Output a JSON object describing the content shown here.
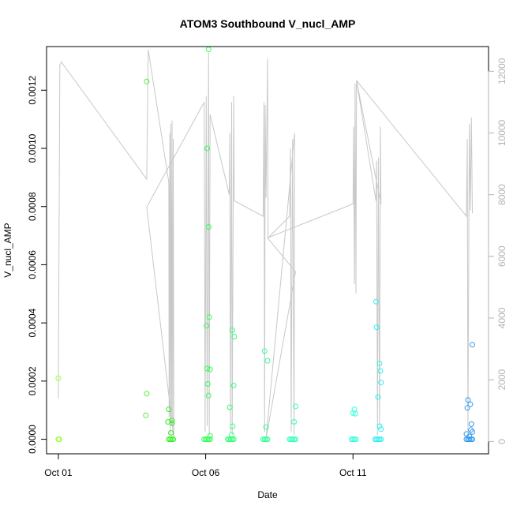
{
  "chart_data": {
    "type": "scatter",
    "title": "ATOM3 Southbound V_nucl_AMP",
    "xlabel": "Date",
    "ylabel": "V_nucl_AMP",
    "x_axis": {
      "ticks": [
        {
          "value": 0,
          "label": "Oct 01"
        },
        {
          "value": 5,
          "label": "Oct 06"
        },
        {
          "value": 10,
          "label": "Oct 11"
        }
      ],
      "xlim": [
        -0.4,
        14.6
      ]
    },
    "y_axis_left": {
      "ylim": [
        -5e-05,
        0.00135
      ],
      "ticks": [
        {
          "value": 0.0,
          "label": "0.0000"
        },
        {
          "value": 0.0002,
          "label": "0.0002"
        },
        {
          "value": 0.0004,
          "label": "0.0004"
        },
        {
          "value": 0.0006,
          "label": "0.0006"
        },
        {
          "value": 0.0008,
          "label": "0.0008"
        },
        {
          "value": 0.001,
          "label": "0.0010"
        },
        {
          "value": 0.0012,
          "label": "0.0012"
        }
      ]
    },
    "y_axis_right": {
      "color": "#b3b3b3",
      "ylim": [
        -400,
        12800
      ],
      "ticks": [
        {
          "value": 0,
          "label": "0"
        },
        {
          "value": 2000,
          "label": "2000"
        },
        {
          "value": 4000,
          "label": "4000"
        },
        {
          "value": 6000,
          "label": "6000"
        },
        {
          "value": 8000,
          "label": "8000"
        },
        {
          "value": 10000,
          "label": "10000"
        },
        {
          "value": 12000,
          "label": "12000"
        }
      ]
    },
    "grid": false,
    "points": [
      {
        "x": 0.0,
        "y": 0.00021,
        "color": "#99ff33"
      },
      {
        "x": 0.0,
        "y": 0.0,
        "color": "#99ff33"
      },
      {
        "x": 0.03,
        "y": 0.0,
        "color": "#99ff33"
      },
      {
        "x": 3.0,
        "y": 0.00123,
        "color": "#55ee33"
      },
      {
        "x": 3.0,
        "y": 0.000157,
        "color": "#55ee33"
      },
      {
        "x": 2.97,
        "y": 8.2e-05,
        "color": "#55ee33"
      },
      {
        "x": 3.75,
        "y": 0.000103,
        "color": "#33ee22"
      },
      {
        "x": 3.72,
        "y": 6e-05,
        "color": "#33ee22"
      },
      {
        "x": 3.85,
        "y": 6.5e-05,
        "color": "#33ee22"
      },
      {
        "x": 3.86,
        "y": 5.5e-05,
        "color": "#33ee22"
      },
      {
        "x": 3.82,
        "y": 2.2e-05,
        "color": "#33ee22"
      },
      {
        "x": 3.75,
        "y": 0.0,
        "color": "#33ee22"
      },
      {
        "x": 3.8,
        "y": 0.0,
        "color": "#33ee22"
      },
      {
        "x": 3.85,
        "y": 0.0,
        "color": "#33ee22"
      },
      {
        "x": 3.9,
        "y": 0.0,
        "color": "#33ee22"
      },
      {
        "x": 5.1,
        "y": 0.00134,
        "color": "#33ff55"
      },
      {
        "x": 5.05,
        "y": 0.001,
        "color": "#33ff55"
      },
      {
        "x": 5.1,
        "y": 0.00073,
        "color": "#33ff55"
      },
      {
        "x": 5.12,
        "y": 0.00042,
        "color": "#33ff55"
      },
      {
        "x": 5.03,
        "y": 0.00039,
        "color": "#33ff55"
      },
      {
        "x": 5.05,
        "y": 0.000243,
        "color": "#33ff55"
      },
      {
        "x": 5.15,
        "y": 0.00024,
        "color": "#33ff55"
      },
      {
        "x": 5.07,
        "y": 0.00019,
        "color": "#33ff55"
      },
      {
        "x": 5.1,
        "y": 0.00015,
        "color": "#33ff55"
      },
      {
        "x": 5.15,
        "y": 1.2e-05,
        "color": "#33ff55"
      },
      {
        "x": 4.95,
        "y": 0.0,
        "color": "#33ff55"
      },
      {
        "x": 5.0,
        "y": 0.0,
        "color": "#33ff55"
      },
      {
        "x": 5.05,
        "y": 0.0,
        "color": "#33ff55"
      },
      {
        "x": 5.1,
        "y": 0.0,
        "color": "#33ff55"
      },
      {
        "x": 5.15,
        "y": 0.0,
        "color": "#33ff55"
      },
      {
        "x": 5.9,
        "y": 0.000375,
        "color": "#33ff77"
      },
      {
        "x": 5.97,
        "y": 0.000353,
        "color": "#33ff77"
      },
      {
        "x": 5.95,
        "y": 0.000185,
        "color": "#33ff77"
      },
      {
        "x": 5.82,
        "y": 0.00011,
        "color": "#33ff77"
      },
      {
        "x": 5.92,
        "y": 4.5e-05,
        "color": "#33ff77"
      },
      {
        "x": 5.88,
        "y": 1.5e-05,
        "color": "#33ff77"
      },
      {
        "x": 5.75,
        "y": 0.0,
        "color": "#33ff77"
      },
      {
        "x": 5.8,
        "y": 0.0,
        "color": "#33ff77"
      },
      {
        "x": 5.85,
        "y": 0.0,
        "color": "#33ff77"
      },
      {
        "x": 5.9,
        "y": 0.0,
        "color": "#33ff77"
      },
      {
        "x": 5.95,
        "y": 0.0,
        "color": "#33ff77"
      },
      {
        "x": 7.0,
        "y": 0.000303,
        "color": "#33ff99"
      },
      {
        "x": 7.1,
        "y": 0.00027,
        "color": "#33ff99"
      },
      {
        "x": 7.05,
        "y": 4.2e-05,
        "color": "#33ff99"
      },
      {
        "x": 6.95,
        "y": 0.0,
        "color": "#33ff99"
      },
      {
        "x": 7.0,
        "y": 0.0,
        "color": "#33ff99"
      },
      {
        "x": 7.05,
        "y": 0.0,
        "color": "#33ff99"
      },
      {
        "x": 7.1,
        "y": 0.0,
        "color": "#33ff99"
      },
      {
        "x": 8.05,
        "y": 0.000113,
        "color": "#33ffbb"
      },
      {
        "x": 8.0,
        "y": 6e-05,
        "color": "#33ffbb"
      },
      {
        "x": 7.85,
        "y": 0.0,
        "color": "#33ffbb"
      },
      {
        "x": 7.9,
        "y": 0.0,
        "color": "#33ffbb"
      },
      {
        "x": 7.95,
        "y": 0.0,
        "color": "#33ffbb"
      },
      {
        "x": 8.0,
        "y": 0.0,
        "color": "#33ffbb"
      },
      {
        "x": 8.05,
        "y": 0.0,
        "color": "#33ffbb"
      },
      {
        "x": 10.05,
        "y": 0.000103,
        "color": "#33ffdd"
      },
      {
        "x": 10.0,
        "y": 9e-05,
        "color": "#33ffdd"
      },
      {
        "x": 10.08,
        "y": 8.8e-05,
        "color": "#33ffdd"
      },
      {
        "x": 9.95,
        "y": 0.0,
        "color": "#33ffdd"
      },
      {
        "x": 10.0,
        "y": 0.0,
        "color": "#33ffdd"
      },
      {
        "x": 10.05,
        "y": 0.0,
        "color": "#33ffdd"
      },
      {
        "x": 10.1,
        "y": 0.0,
        "color": "#33ffdd"
      },
      {
        "x": 10.78,
        "y": 0.000473,
        "color": "#33eeee"
      },
      {
        "x": 10.8,
        "y": 0.000385,
        "color": "#33eeee"
      },
      {
        "x": 10.9,
        "y": 0.00026,
        "color": "#33eeee"
      },
      {
        "x": 10.93,
        "y": 0.000235,
        "color": "#33eeee"
      },
      {
        "x": 10.95,
        "y": 0.000195,
        "color": "#33eeee"
      },
      {
        "x": 10.85,
        "y": 0.000145,
        "color": "#33eeee"
      },
      {
        "x": 10.9,
        "y": 4.5e-05,
        "color": "#33eeee"
      },
      {
        "x": 10.95,
        "y": 3.5e-05,
        "color": "#33eeee"
      },
      {
        "x": 10.75,
        "y": 0.0,
        "color": "#33eeee"
      },
      {
        "x": 10.8,
        "y": 0.0,
        "color": "#33eeee"
      },
      {
        "x": 10.85,
        "y": 0.0,
        "color": "#33eeee"
      },
      {
        "x": 10.9,
        "y": 0.0,
        "color": "#33eeee"
      },
      {
        "x": 10.95,
        "y": 0.0,
        "color": "#33eeee"
      },
      {
        "x": 14.05,
        "y": 0.000325,
        "color": "#3399ee"
      },
      {
        "x": 13.9,
        "y": 0.000135,
        "color": "#3399ee"
      },
      {
        "x": 13.98,
        "y": 0.00012,
        "color": "#3399ee"
      },
      {
        "x": 13.88,
        "y": 0.000108,
        "color": "#3399ee"
      },
      {
        "x": 14.02,
        "y": 5.2e-05,
        "color": "#3399ee"
      },
      {
        "x": 14.0,
        "y": 3.2e-05,
        "color": "#3399ee"
      },
      {
        "x": 14.05,
        "y": 2.5e-05,
        "color": "#3399ee"
      },
      {
        "x": 13.85,
        "y": 1.8e-05,
        "color": "#3399ee"
      },
      {
        "x": 13.95,
        "y": 1e-05,
        "color": "#3399ee"
      },
      {
        "x": 13.85,
        "y": 0.0,
        "color": "#3399ee"
      },
      {
        "x": 13.9,
        "y": 0.0,
        "color": "#3399ee"
      },
      {
        "x": 13.95,
        "y": 0.0,
        "color": "#3399ee"
      },
      {
        "x": 14.0,
        "y": 0.0,
        "color": "#3399ee"
      },
      {
        "x": 14.05,
        "y": 0.0,
        "color": "#3399ee"
      }
    ],
    "secondary_line": {
      "color": "#c8c8c8",
      "axis": "right",
      "points": [
        [
          0.0,
          1400
        ],
        [
          0.05,
          12200
        ],
        [
          0.1,
          12300
        ],
        [
          3.0,
          8500
        ],
        [
          3.05,
          12700
        ],
        [
          3.75,
          8400
        ],
        [
          3.76,
          800
        ],
        [
          3.78,
          10000
        ],
        [
          3.8,
          200
        ],
        [
          3.82,
          10300
        ],
        [
          3.84,
          500
        ],
        [
          3.86,
          10400
        ],
        [
          3.88,
          300
        ],
        [
          3.9,
          9800
        ],
        [
          3.92,
          100
        ],
        [
          3.0,
          7600
        ],
        [
          4.95,
          11000
        ],
        [
          4.98,
          300
        ],
        [
          5.02,
          11200
        ],
        [
          5.05,
          500
        ],
        [
          5.1,
          12600
        ],
        [
          5.12,
          200
        ],
        [
          5.15,
          10600
        ],
        [
          5.8,
          8000
        ],
        [
          5.82,
          10000
        ],
        [
          5.84,
          300
        ],
        [
          5.88,
          11000
        ],
        [
          5.9,
          200
        ],
        [
          5.95,
          11200
        ],
        [
          5.97,
          7800
        ],
        [
          6.95,
          7300
        ],
        [
          6.98,
          11000
        ],
        [
          7.0,
          300
        ],
        [
          7.02,
          10900
        ],
        [
          7.05,
          7900
        ],
        [
          7.1,
          12400
        ],
        [
          7.12,
          6600
        ],
        [
          7.85,
          7300
        ],
        [
          7.88,
          9500
        ],
        [
          7.9,
          300
        ],
        [
          7.95,
          9800
        ],
        [
          8.0,
          200
        ],
        [
          8.02,
          10000
        ],
        [
          7.05,
          100
        ],
        [
          8.05,
          5500
        ],
        [
          7.1,
          6600
        ],
        [
          10.0,
          7700
        ],
        [
          10.02,
          10200
        ],
        [
          10.05,
          5100
        ],
        [
          10.07,
          11600
        ],
        [
          10.1,
          4800
        ],
        [
          10.12,
          11700
        ],
        [
          10.78,
          7800
        ],
        [
          10.8,
          9100
        ],
        [
          10.83,
          200
        ],
        [
          10.86,
          9200
        ],
        [
          10.9,
          500
        ],
        [
          10.93,
          10200
        ],
        [
          10.95,
          7700
        ],
        [
          10.12,
          11700
        ],
        [
          13.85,
          7300
        ],
        [
          13.88,
          9800
        ],
        [
          13.9,
          300
        ],
        [
          13.95,
          10300
        ],
        [
          13.98,
          7500
        ],
        [
          14.02,
          10500
        ],
        [
          14.05,
          7400
        ]
      ]
    }
  }
}
